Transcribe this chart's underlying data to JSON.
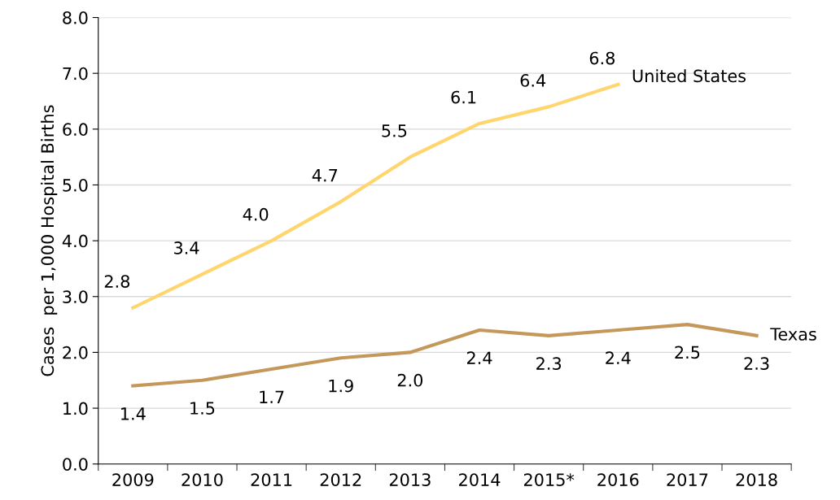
{
  "chart_data": {
    "type": "line",
    "ylabel": "Cases  per 1,000 Hospital Births",
    "categories": [
      "2009",
      "2010",
      "2011",
      "2012",
      "2013",
      "2014",
      "2015*",
      "2016",
      "2017",
      "2018"
    ],
    "series": [
      {
        "name": "United States",
        "color": "#ffd56e",
        "values": [
          2.8,
          3.4,
          4.0,
          4.7,
          5.5,
          6.1,
          6.4,
          6.8,
          null,
          null
        ],
        "value_labels": [
          "2.8",
          "3.4",
          "4.0",
          "4.7",
          "5.5",
          "6.1",
          "6.4",
          "6.8",
          null,
          null
        ]
      },
      {
        "name": "Texas",
        "color": "#c4985a",
        "values": [
          1.4,
          1.5,
          1.7,
          1.9,
          2.0,
          2.4,
          2.3,
          2.4,
          2.5,
          2.3
        ],
        "value_labels": [
          "1.4",
          "1.5",
          "1.7",
          "1.9",
          "2.0",
          "2.4",
          "2.3",
          "2.4",
          "2.5",
          "2.3"
        ]
      }
    ],
    "ylim": [
      0,
      8
    ],
    "yticks": [
      {
        "value": 0,
        "label": "0.0"
      },
      {
        "value": 1,
        "label": "1.0"
      },
      {
        "value": 2,
        "label": "2.0"
      },
      {
        "value": 3,
        "label": "3.0"
      },
      {
        "value": 4,
        "label": "4.0"
      },
      {
        "value": 5,
        "label": "5.0"
      },
      {
        "value": 6,
        "label": "6.0"
      },
      {
        "value": 7,
        "label": "7.0"
      },
      {
        "value": 8,
        "label": "8.0"
      }
    ],
    "grid": "y",
    "legend": false,
    "marker": "none",
    "line_style": "solid"
  }
}
